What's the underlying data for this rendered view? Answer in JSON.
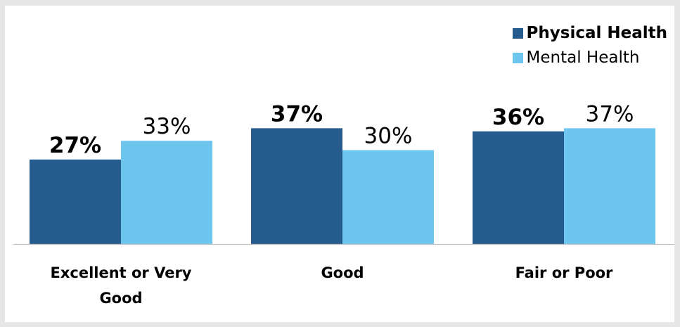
{
  "chart_data": {
    "type": "bar",
    "categories": [
      "Excellent or Very Good",
      "Good",
      "Fair or Poor"
    ],
    "series": [
      {
        "name": "Physical Health",
        "values": [
          27,
          37,
          36
        ],
        "labels": [
          "27%",
          "37%",
          "36%"
        ],
        "color": "#265c8d"
      },
      {
        "name": "Mental Health",
        "values": [
          33,
          30,
          37
        ],
        "labels": [
          "33%",
          "30%",
          "37%"
        ],
        "color": "#6ec6ef"
      }
    ],
    "ylim": [
      0,
      40
    ],
    "grid": false,
    "legend_position": "top-right"
  }
}
